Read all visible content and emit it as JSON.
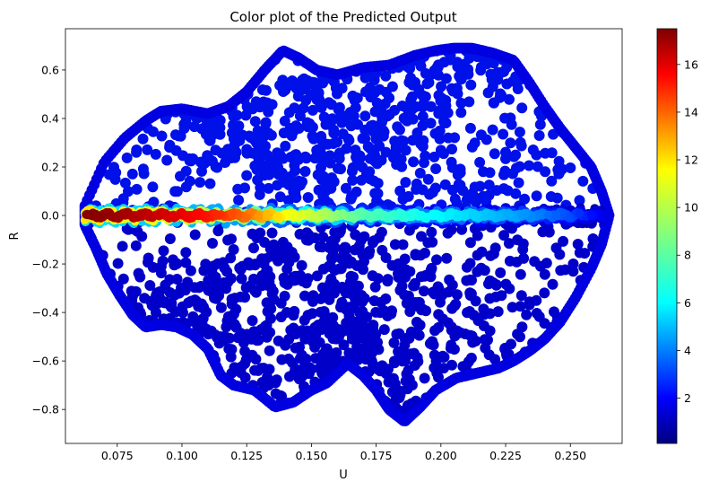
{
  "chart_data": {
    "type": "scatter",
    "title": "Color plot of the Predicted Output",
    "xlabel": "U",
    "ylabel": "R",
    "xlim": [
      0.055,
      0.27
    ],
    "ylim": [
      -0.94,
      0.77
    ],
    "xticks": [
      0.075,
      0.1,
      0.125,
      0.15,
      0.175,
      0.2,
      0.225,
      0.25
    ],
    "xtick_labels": [
      "0.075",
      "0.100",
      "0.125",
      "0.150",
      "0.175",
      "0.200",
      "0.225",
      "0.250"
    ],
    "yticks": [
      -0.8,
      -0.6,
      -0.4,
      -0.2,
      0.0,
      0.2,
      0.4,
      0.6
    ],
    "ytick_labels": [
      "−0.8",
      "−0.6",
      "−0.4",
      "−0.2",
      "0.0",
      "0.2",
      "0.4",
      "0.6"
    ],
    "colormap": "jet",
    "colorbar": {
      "range": [
        0.1,
        17.5
      ],
      "ticks": [
        2,
        4,
        6,
        8,
        10,
        12,
        14,
        16
      ],
      "tick_labels": [
        "2",
        "4",
        "6",
        "8",
        "10",
        "12",
        "14",
        "16"
      ]
    },
    "grid": false,
    "point_color": "#0000d6",
    "loops": [
      [
        [
          0.0625,
          0.04
        ],
        [
          0.07,
          0.22
        ],
        [
          0.078,
          0.32
        ],
        [
          0.086,
          0.39
        ],
        [
          0.092,
          0.43
        ],
        [
          0.1,
          0.44
        ],
        [
          0.11,
          0.42
        ],
        [
          0.118,
          0.45
        ],
        [
          0.125,
          0.51
        ],
        [
          0.132,
          0.6
        ],
        [
          0.139,
          0.68
        ],
        [
          0.145,
          0.65
        ],
        [
          0.152,
          0.6
        ],
        [
          0.16,
          0.58
        ],
        [
          0.17,
          0.61
        ],
        [
          0.18,
          0.62
        ],
        [
          0.19,
          0.66
        ],
        [
          0.198,
          0.68
        ],
        [
          0.205,
          0.69
        ],
        [
          0.212,
          0.69
        ],
        [
          0.22,
          0.67
        ],
        [
          0.228,
          0.64
        ],
        [
          0.234,
          0.55
        ],
        [
          0.24,
          0.45
        ],
        [
          0.246,
          0.36
        ],
        [
          0.252,
          0.28
        ],
        [
          0.258,
          0.2
        ],
        [
          0.262,
          0.1
        ],
        [
          0.265,
          0.0
        ],
        [
          0.262,
          -0.12
        ],
        [
          0.258,
          -0.22
        ],
        [
          0.252,
          -0.34
        ],
        [
          0.246,
          -0.44
        ],
        [
          0.24,
          -0.51
        ],
        [
          0.234,
          -0.56
        ],
        [
          0.228,
          -0.6
        ],
        [
          0.222,
          -0.63
        ],
        [
          0.214,
          -0.65
        ],
        [
          0.206,
          -0.67
        ],
        [
          0.198,
          -0.72
        ],
        [
          0.192,
          -0.79
        ],
        [
          0.186,
          -0.85
        ],
        [
          0.18,
          -0.8
        ],
        [
          0.175,
          -0.72
        ],
        [
          0.17,
          -0.66
        ],
        [
          0.164,
          -0.61
        ],
        [
          0.156,
          -0.69
        ],
        [
          0.15,
          -0.72
        ],
        [
          0.143,
          -0.77
        ],
        [
          0.136,
          -0.79
        ],
        [
          0.128,
          -0.72
        ],
        [
          0.12,
          -0.7
        ],
        [
          0.115,
          -0.66
        ],
        [
          0.11,
          -0.55
        ],
        [
          0.104,
          -0.49
        ],
        [
          0.098,
          -0.46
        ],
        [
          0.092,
          -0.45
        ],
        [
          0.086,
          -0.46
        ],
        [
          0.081,
          -0.41
        ],
        [
          0.076,
          -0.33
        ],
        [
          0.071,
          -0.24
        ],
        [
          0.067,
          -0.14
        ],
        [
          0.0625,
          -0.04
        ]
      ]
    ],
    "center_band": {
      "r": 0.0,
      "u_range": [
        0.0625,
        0.262
      ],
      "values": [
        [
          0.0625,
          17.5
        ],
        [
          0.075,
          17.0
        ],
        [
          0.085,
          16.5
        ],
        [
          0.095,
          16.0
        ],
        [
          0.11,
          15.0
        ],
        [
          0.125,
          13.5
        ],
        [
          0.14,
          11.0
        ],
        [
          0.155,
          9.5
        ],
        [
          0.17,
          8.0
        ],
        [
          0.19,
          7.0
        ],
        [
          0.21,
          6.0
        ],
        [
          0.23,
          5.0
        ],
        [
          0.25,
          3.5
        ],
        [
          0.262,
          2.0
        ]
      ]
    }
  }
}
